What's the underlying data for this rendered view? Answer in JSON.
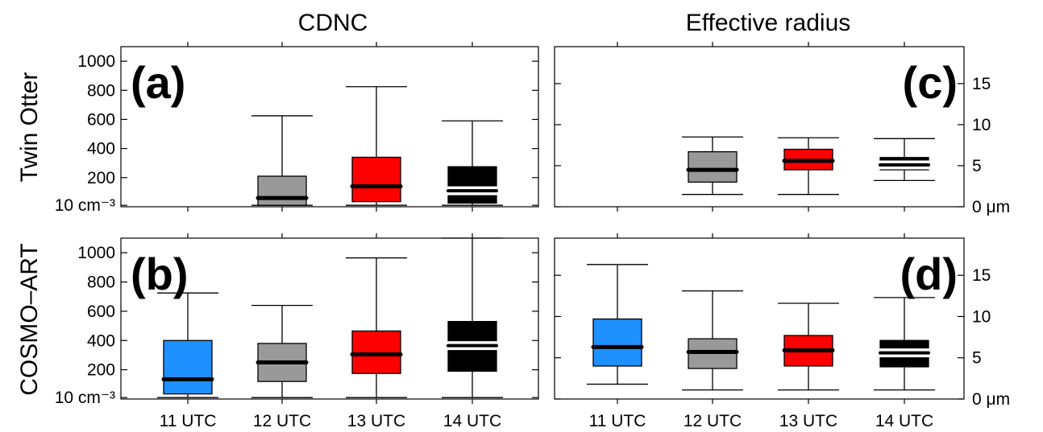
{
  "column_titles": [
    "CDNC",
    "Effective radius"
  ],
  "row_titles": [
    "Twin Otter",
    "COSMO–ART"
  ],
  "colors": {
    "11 UTC": "#1e90ff",
    "12 UTC": "#999999",
    "13 UTC": "#ff0000",
    "14 UTC": "#000000"
  },
  "chart_data": [
    {
      "type": "boxplot",
      "panel": "(a)",
      "side": "left",
      "categories": [
        "11 UTC",
        "12 UTC",
        "13 UTC",
        "14 UTC"
      ],
      "ylim": [
        0,
        1100
      ],
      "yticks": [
        {
          "v": 10,
          "label": "10 cm⁻³"
        },
        {
          "v": 200,
          "label": "200"
        },
        {
          "v": 400,
          "label": "400"
        },
        {
          "v": 600,
          "label": "600"
        },
        {
          "v": 800,
          "label": "800"
        },
        {
          "v": 1000,
          "label": "1000"
        }
      ],
      "boxes": [
        null,
        {
          "cat": "12 UTC",
          "min": 10,
          "q1": 10,
          "median": 60,
          "q3": 210,
          "max": 625
        },
        {
          "cat": "13 UTC",
          "min": 10,
          "q1": 35,
          "median": 140,
          "q3": 340,
          "max": 825
        },
        {
          "cat": "14 UTC",
          "min": 10,
          "q1": 25,
          "median": 110,
          "q3": 275,
          "max": 590
        }
      ]
    },
    {
      "type": "boxplot",
      "panel": "(b)",
      "side": "left",
      "categories": [
        "11 UTC",
        "12 UTC",
        "13 UTC",
        "14 UTC"
      ],
      "ylim": [
        0,
        1100
      ],
      "yticks": [
        {
          "v": 10,
          "label": "10 cm⁻³"
        },
        {
          "v": 200,
          "label": "200"
        },
        {
          "v": 400,
          "label": "400"
        },
        {
          "v": 600,
          "label": "600"
        },
        {
          "v": 800,
          "label": "800"
        },
        {
          "v": 1000,
          "label": "1000"
        }
      ],
      "boxes": [
        {
          "cat": "11 UTC",
          "min": 10,
          "q1": 35,
          "median": 135,
          "q3": 400,
          "max": 725
        },
        {
          "cat": "12 UTC",
          "min": 10,
          "q1": 120,
          "median": 250,
          "q3": 380,
          "max": 640
        },
        {
          "cat": "13 UTC",
          "min": 10,
          "q1": 175,
          "median": 305,
          "q3": 465,
          "max": 965
        },
        {
          "cat": "14 UTC",
          "min": 10,
          "q1": 190,
          "median": 365,
          "q3": 530,
          "max": 1100
        }
      ]
    },
    {
      "type": "boxplot",
      "panel": "(c)",
      "side": "right",
      "categories": [
        "11 UTC",
        "12 UTC",
        "13 UTC",
        "14 UTC"
      ],
      "ylim": [
        0,
        19.5
      ],
      "yticks": [
        {
          "v": 0,
          "label": "0 μm"
        },
        {
          "v": 5,
          "label": "5"
        },
        {
          "v": 10,
          "label": "10"
        },
        {
          "v": 15,
          "label": "15"
        }
      ],
      "boxes": [
        null,
        {
          "cat": "12 UTC",
          "min": 1.5,
          "q1": 3,
          "median": 4.5,
          "q3": 6.7,
          "max": 8.5
        },
        {
          "cat": "13 UTC",
          "min": 1.5,
          "q1": 4.5,
          "median": 5.6,
          "q3": 7,
          "max": 8.4
        },
        {
          "cat": "14 UTC",
          "min": 3.2,
          "q1": 4.5,
          "median": 5.1,
          "q3": 6,
          "max": 8.3
        }
      ]
    },
    {
      "type": "boxplot",
      "panel": "(d)",
      "side": "right",
      "categories": [
        "11 UTC",
        "12 UTC",
        "13 UTC",
        "14 UTC"
      ],
      "ylim": [
        0,
        19.5
      ],
      "yticks": [
        {
          "v": 0,
          "label": "0 μm"
        },
        {
          "v": 5,
          "label": "5"
        },
        {
          "v": 10,
          "label": "10"
        },
        {
          "v": 15,
          "label": "15"
        }
      ],
      "boxes": [
        {
          "cat": "11 UTC",
          "min": 1.8,
          "q1": 4,
          "median": 6.3,
          "q3": 9.7,
          "max": 16.3
        },
        {
          "cat": "12 UTC",
          "min": 1.1,
          "q1": 3.7,
          "median": 5.7,
          "q3": 7.3,
          "max": 13.1
        },
        {
          "cat": "13 UTC",
          "min": 1.1,
          "q1": 4,
          "median": 5.9,
          "q3": 7.7,
          "max": 11.6
        },
        {
          "cat": "14 UTC",
          "min": 1.1,
          "q1": 3.9,
          "median": 5.6,
          "q3": 7.1,
          "max": 12.3
        }
      ]
    }
  ]
}
